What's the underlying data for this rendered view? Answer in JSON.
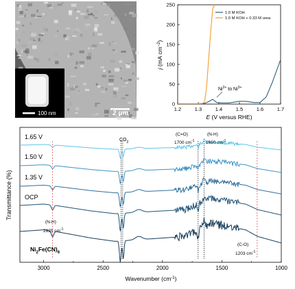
{
  "colors": {
    "koh": "#2c5d7c",
    "koh_urea": "#f39c2a",
    "spectra": [
      "#5fc4ea",
      "#3d92c4",
      "#2e6e9a",
      "#1c4f73",
      "#143b59"
    ],
    "marker_red": "#e05050"
  },
  "sem": {
    "scale_main": "2 μm",
    "scale_inset": "100 nm"
  },
  "chart_data": [
    {
      "type": "line",
      "xlabel_italic": "E",
      "xlabel_rest": " (V versus RHE)",
      "ylabel_italic": "j",
      "ylabel_rest": " (mA cm",
      "ylabel_sup": "−2",
      "ylabel_close": ")",
      "xlim": [
        1.2,
        1.7
      ],
      "ylim": [
        0,
        250
      ],
      "xticks": [
        "1.2",
        "1.3",
        "1.4",
        "1.5",
        "1.6",
        "1.7"
      ],
      "yticks": [
        "0",
        "50",
        "100",
        "150",
        "200",
        "250"
      ],
      "legend": [
        "1.0 M KOH",
        "1.0 M KOH + 0.33 M urea"
      ],
      "annotation": {
        "main": "Ni",
        "sup1": "2+",
        "mid": " to Ni",
        "sup2": "3+"
      },
      "series": [
        {
          "name": "1.0 M KOH",
          "x": [
            1.2,
            1.3,
            1.33,
            1.35,
            1.37,
            1.38,
            1.39,
            1.41,
            1.45,
            1.5,
            1.53,
            1.57,
            1.6,
            1.63,
            1.66,
            1.7
          ],
          "y": [
            1,
            1,
            1.5,
            6,
            12,
            8,
            4,
            3,
            3,
            7,
            7,
            4,
            4,
            18,
            55,
            112
          ]
        },
        {
          "name": "1.0 M KOH + 0.33 M urea",
          "x": [
            1.2,
            1.3,
            1.32,
            1.33,
            1.34,
            1.35,
            1.36,
            1.37,
            1.38
          ],
          "y": [
            1,
            1,
            1.5,
            5,
            40,
            110,
            180,
            240,
            250
          ]
        }
      ]
    },
    {
      "type": "line",
      "xlabel": "Wavenumber (cm",
      "xlabel_sup": "-1",
      "xlabel_close": ")",
      "ylabel": "Transmittance (%)",
      "xlim": [
        3200,
        1000
      ],
      "xticks": [
        "3000",
        "2500",
        "2000",
        "1500",
        "1000"
      ],
      "series_labels": [
        "1.65 V",
        "1.50 V",
        "1.35 V",
        "OCP"
      ],
      "compound": {
        "main": "Ni",
        "sub1": "2",
        "mid": "Fe(CN)",
        "sub2": "6"
      },
      "annotations": {
        "co2_main": "CO",
        "co2_sub": "2",
        "co_label": "(C=O)",
        "co_value": "1700 cm",
        "co_sup": "-1",
        "nh_top_label": "(N-H)",
        "nh_top_value": "1650 cm",
        "nh_top_sup": "-1",
        "nh_left_label": "(N-H)",
        "nh_left_value": "2925 cm",
        "nh_left_sup": "-1",
        "c_o_label": "(C-O)",
        "c_o_value": "1203 cm",
        "c_o_sup": "-1"
      },
      "markers_dotted": [
        2925,
        2348,
        2335,
        1700,
        1650,
        1203
      ]
    }
  ]
}
